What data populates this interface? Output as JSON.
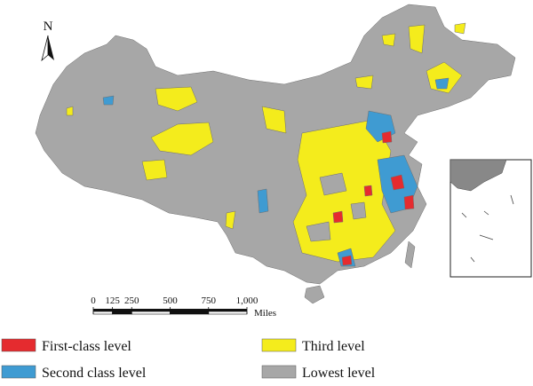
{
  "map": {
    "north_arrow": "N",
    "scale_bar": {
      "ticks": [
        0,
        125,
        250,
        500,
        750,
        {
          "value": 1000,
          "label": "1,000"
        }
      ],
      "unit": "Miles",
      "max": 1000
    },
    "legend": {
      "items": [
        {
          "name": "First-class level",
          "color": "#e52b2f"
        },
        {
          "name": "Second class level",
          "color": "#3f9bd2"
        },
        {
          "name": "Third level",
          "color": "#f4ec1c"
        },
        {
          "name": "Lowest level",
          "color": "#a7a7a7"
        }
      ]
    }
  }
}
